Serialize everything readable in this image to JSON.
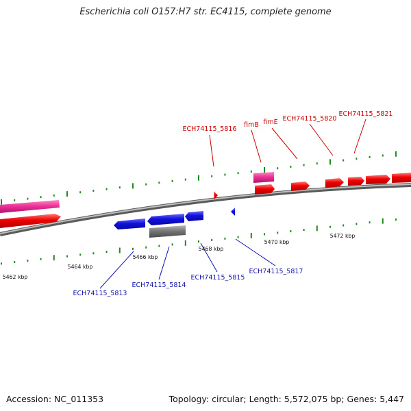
{
  "title": "Escherichia coli O157:H7 str. EC4115, complete genome",
  "footer": {
    "accession": "Accession: NC_011353",
    "topology": "Topology: circular; Length: 5,572,075 bp; Genes: 5,447"
  },
  "colors": {
    "forward": "#ee0000",
    "forward_highlight": "#ee3399",
    "reverse": "#1111dd",
    "reverse_other": "#777777",
    "backbone": "#888888",
    "ticks": "#1f8a1f"
  },
  "scale_labels": [
    "5462 kbp",
    "5464 kbp",
    "5466 kbp",
    "5468 kbp",
    "5470 kbp",
    "5472 kbp"
  ],
  "forward_genes": [
    "ECH74115_5816",
    "fimB",
    "fimE",
    "ECH74115_5820",
    "ECH74115_5821"
  ],
  "reverse_genes": [
    "ECH74115_5813",
    "ECH74115_5814",
    "ECH74115_5815",
    "ECH74115_5817"
  ]
}
